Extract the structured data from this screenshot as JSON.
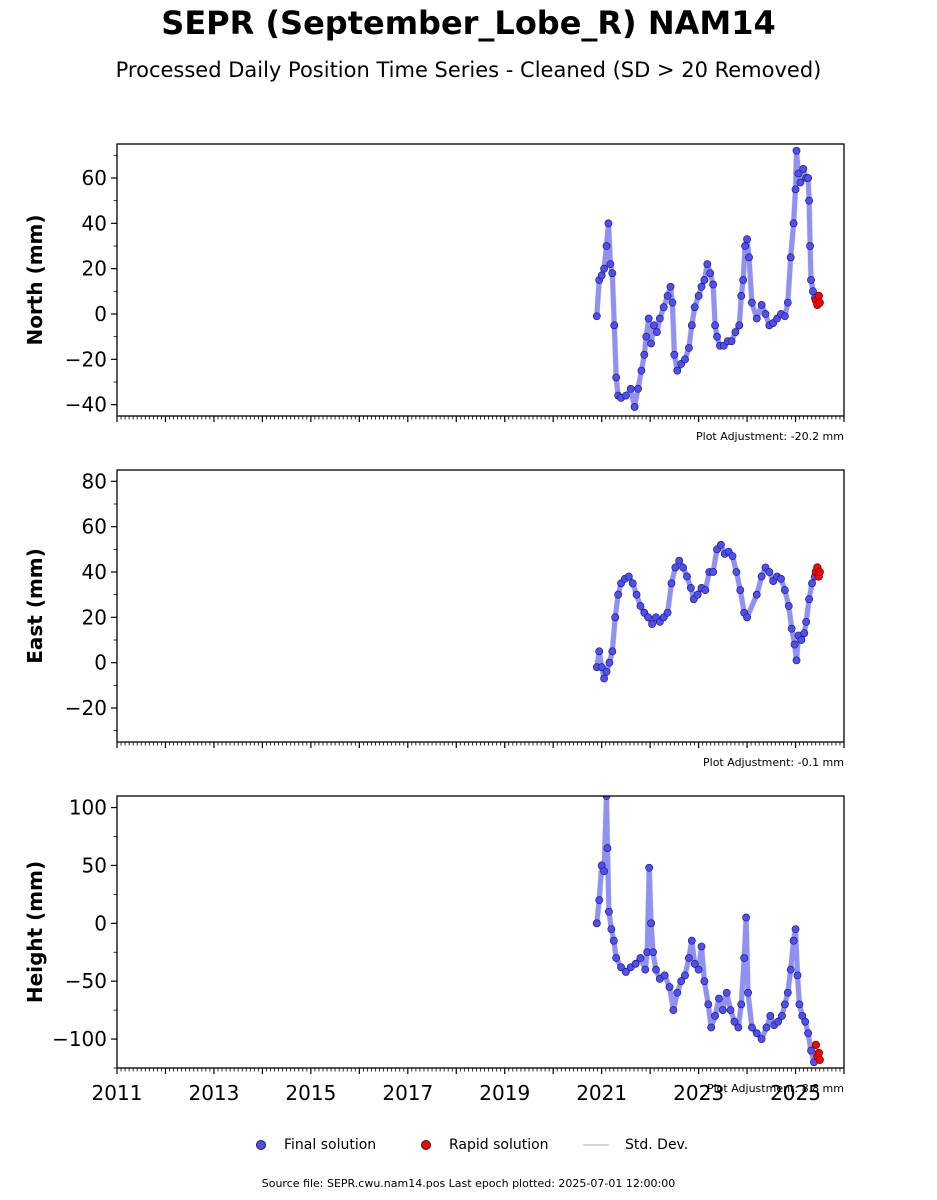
{
  "title": "SEPR (September_Lobe_R) NAM14",
  "subtitle": "Processed Daily Position Time Series - Cleaned (SD > 20 Removed)",
  "legend": {
    "final": "Final solution",
    "rapid": "Rapid solution",
    "std": "Std. Dev."
  },
  "footer": "Source file: SEPR.cwu.nam14.pos  Last epoch plotted: 2025-07-01 12:00:00",
  "colors": {
    "final": "#4d4dff",
    "rapid": "#ff0000",
    "std": "#cccccc",
    "edge": "#1a1a3a"
  },
  "chart_data": [
    {
      "type": "scatter",
      "ylabel": "North (mm)",
      "adjustment": "Plot Adjustment: -20.2 mm",
      "xlim": [
        2011,
        2026
      ],
      "ylim": [
        -45,
        75
      ],
      "yticks": [
        -40,
        -20,
        0,
        20,
        40,
        60
      ],
      "yticklabels": [
        "−40",
        "−20",
        "0",
        "20",
        "40",
        "60"
      ],
      "final": [
        [
          2020.9,
          -1
        ],
        [
          2020.95,
          15
        ],
        [
          2021.0,
          17
        ],
        [
          2021.05,
          20
        ],
        [
          2021.1,
          30
        ],
        [
          2021.14,
          40
        ],
        [
          2021.18,
          22
        ],
        [
          2021.22,
          18
        ],
        [
          2021.26,
          -5
        ],
        [
          2021.3,
          -28
        ],
        [
          2021.34,
          -36
        ],
        [
          2021.4,
          -37
        ],
        [
          2021.5,
          -36
        ],
        [
          2021.6,
          -33
        ],
        [
          2021.68,
          -41
        ],
        [
          2021.75,
          -33
        ],
        [
          2021.82,
          -25
        ],
        [
          2021.88,
          -18
        ],
        [
          2021.92,
          -10
        ],
        [
          2021.97,
          -2
        ],
        [
          2022.02,
          -13
        ],
        [
          2022.08,
          -5
        ],
        [
          2022.14,
          -8
        ],
        [
          2022.2,
          -2
        ],
        [
          2022.28,
          3
        ],
        [
          2022.36,
          8
        ],
        [
          2022.42,
          12
        ],
        [
          2022.46,
          5
        ],
        [
          2022.5,
          -18
        ],
        [
          2022.56,
          -25
        ],
        [
          2022.64,
          -22
        ],
        [
          2022.72,
          -20
        ],
        [
          2022.8,
          -15
        ],
        [
          2022.86,
          -5
        ],
        [
          2022.92,
          3
        ],
        [
          2023.0,
          8
        ],
        [
          2023.06,
          12
        ],
        [
          2023.12,
          15
        ],
        [
          2023.18,
          22
        ],
        [
          2023.24,
          18
        ],
        [
          2023.3,
          13
        ],
        [
          2023.34,
          -5
        ],
        [
          2023.38,
          -10
        ],
        [
          2023.44,
          -14
        ],
        [
          2023.52,
          -14
        ],
        [
          2023.6,
          -12
        ],
        [
          2023.68,
          -12
        ],
        [
          2023.76,
          -8
        ],
        [
          2023.84,
          -5
        ],
        [
          2023.88,
          8
        ],
        [
          2023.92,
          15
        ],
        [
          2023.96,
          30
        ],
        [
          2024.0,
          33
        ],
        [
          2024.04,
          25
        ],
        [
          2024.1,
          5
        ],
        [
          2024.2,
          -2
        ],
        [
          2024.3,
          4
        ],
        [
          2024.38,
          0
        ],
        [
          2024.46,
          -5
        ],
        [
          2024.54,
          -4
        ],
        [
          2024.62,
          -2
        ],
        [
          2024.7,
          0
        ],
        [
          2024.78,
          -1
        ],
        [
          2024.84,
          5
        ],
        [
          2024.9,
          25
        ],
        [
          2024.96,
          40
        ],
        [
          2025.0,
          55
        ],
        [
          2025.02,
          72
        ],
        [
          2025.06,
          62
        ],
        [
          2025.1,
          58
        ],
        [
          2025.16,
          64
        ],
        [
          2025.22,
          60
        ],
        [
          2025.26,
          60
        ],
        [
          2025.28,
          50
        ],
        [
          2025.3,
          30
        ],
        [
          2025.32,
          15
        ],
        [
          2025.36,
          10
        ],
        [
          2025.4,
          7
        ]
      ],
      "rapid": [
        [
          2025.42,
          6
        ],
        [
          2025.45,
          4
        ],
        [
          2025.48,
          8
        ],
        [
          2025.5,
          5
        ]
      ]
    },
    {
      "type": "scatter",
      "ylabel": "East (mm)",
      "adjustment": "Plot Adjustment: -0.1 mm",
      "xlim": [
        2011,
        2026
      ],
      "ylim": [
        -35,
        85
      ],
      "yticks": [
        -20,
        0,
        20,
        40,
        60,
        80
      ],
      "yticklabels": [
        "−20",
        "0",
        "20",
        "40",
        "60",
        "80"
      ],
      "final": [
        [
          2020.9,
          -2
        ],
        [
          2020.95,
          5
        ],
        [
          2021.0,
          -2
        ],
        [
          2021.05,
          -7
        ],
        [
          2021.1,
          -4
        ],
        [
          2021.16,
          0
        ],
        [
          2021.22,
          5
        ],
        [
          2021.28,
          20
        ],
        [
          2021.34,
          30
        ],
        [
          2021.4,
          35
        ],
        [
          2021.48,
          37
        ],
        [
          2021.56,
          38
        ],
        [
          2021.64,
          35
        ],
        [
          2021.72,
          30
        ],
        [
          2021.8,
          25
        ],
        [
          2021.88,
          22
        ],
        [
          2021.96,
          20
        ],
        [
          2022.04,
          17
        ],
        [
          2022.12,
          20
        ],
        [
          2022.2,
          18
        ],
        [
          2022.28,
          20
        ],
        [
          2022.36,
          22
        ],
        [
          2022.44,
          35
        ],
        [
          2022.52,
          42
        ],
        [
          2022.6,
          45
        ],
        [
          2022.68,
          42
        ],
        [
          2022.76,
          38
        ],
        [
          2022.84,
          33
        ],
        [
          2022.9,
          28
        ],
        [
          2022.98,
          30
        ],
        [
          2023.06,
          33
        ],
        [
          2023.14,
          32
        ],
        [
          2023.22,
          40
        ],
        [
          2023.3,
          40
        ],
        [
          2023.38,
          50
        ],
        [
          2023.46,
          52
        ],
        [
          2023.54,
          48
        ],
        [
          2023.62,
          49
        ],
        [
          2023.7,
          47
        ],
        [
          2023.78,
          40
        ],
        [
          2023.86,
          32
        ],
        [
          2023.94,
          22
        ],
        [
          2024.0,
          20
        ],
        [
          2024.2,
          30
        ],
        [
          2024.3,
          38
        ],
        [
          2024.38,
          42
        ],
        [
          2024.46,
          40
        ],
        [
          2024.54,
          36
        ],
        [
          2024.62,
          38
        ],
        [
          2024.7,
          37
        ],
        [
          2024.78,
          32
        ],
        [
          2024.86,
          25
        ],
        [
          2024.92,
          15
        ],
        [
          2024.98,
          8
        ],
        [
          2025.02,
          1
        ],
        [
          2025.06,
          12
        ],
        [
          2025.12,
          10
        ],
        [
          2025.18,
          13
        ],
        [
          2025.22,
          18
        ],
        [
          2025.28,
          28
        ],
        [
          2025.34,
          35
        ],
        [
          2025.4,
          38
        ]
      ],
      "rapid": [
        [
          2025.42,
          40
        ],
        [
          2025.45,
          42
        ],
        [
          2025.48,
          38
        ],
        [
          2025.5,
          40
        ]
      ]
    },
    {
      "type": "scatter",
      "ylabel": "Height (mm)",
      "adjustment": "Plot Adjustment: 8.8 mm",
      "xlim": [
        2011,
        2026
      ],
      "ylim": [
        -125,
        110
      ],
      "xticks": [
        2011,
        2013,
        2015,
        2017,
        2019,
        2021,
        2023,
        2025
      ],
      "xticklabels": [
        "2011",
        "2013",
        "2015",
        "2017",
        "2019",
        "2021",
        "2023",
        "2025"
      ],
      "yticks": [
        -100,
        -50,
        0,
        50,
        100
      ],
      "yticklabels": [
        "−100",
        "−50",
        "0",
        "50",
        "100"
      ],
      "final": [
        [
          2020.9,
          0
        ],
        [
          2020.95,
          20
        ],
        [
          2021.0,
          50
        ],
        [
          2021.05,
          45
        ],
        [
          2021.1,
          110
        ],
        [
          2021.12,
          65
        ],
        [
          2021.15,
          10
        ],
        [
          2021.2,
          -5
        ],
        [
          2021.25,
          -15
        ],
        [
          2021.3,
          -30
        ],
        [
          2021.4,
          -38
        ],
        [
          2021.5,
          -42
        ],
        [
          2021.6,
          -38
        ],
        [
          2021.7,
          -35
        ],
        [
          2021.8,
          -30
        ],
        [
          2021.9,
          -40
        ],
        [
          2021.94,
          -25
        ],
        [
          2021.98,
          48
        ],
        [
          2022.02,
          0
        ],
        [
          2022.06,
          -25
        ],
        [
          2022.12,
          -40
        ],
        [
          2022.2,
          -48
        ],
        [
          2022.3,
          -45
        ],
        [
          2022.4,
          -55
        ],
        [
          2022.48,
          -75
        ],
        [
          2022.56,
          -60
        ],
        [
          2022.64,
          -50
        ],
        [
          2022.72,
          -45
        ],
        [
          2022.8,
          -30
        ],
        [
          2022.86,
          -15
        ],
        [
          2022.92,
          -35
        ],
        [
          2023.0,
          -40
        ],
        [
          2023.06,
          -20
        ],
        [
          2023.12,
          -50
        ],
        [
          2023.2,
          -70
        ],
        [
          2023.26,
          -90
        ],
        [
          2023.34,
          -80
        ],
        [
          2023.42,
          -65
        ],
        [
          2023.5,
          -75
        ],
        [
          2023.58,
          -60
        ],
        [
          2023.66,
          -75
        ],
        [
          2023.74,
          -85
        ],
        [
          2023.82,
          -90
        ],
        [
          2023.88,
          -70
        ],
        [
          2023.94,
          -30
        ],
        [
          2023.98,
          5
        ],
        [
          2024.02,
          -60
        ],
        [
          2024.1,
          -90
        ],
        [
          2024.2,
          -95
        ],
        [
          2024.3,
          -100
        ],
        [
          2024.4,
          -90
        ],
        [
          2024.48,
          -80
        ],
        [
          2024.56,
          -88
        ],
        [
          2024.64,
          -85
        ],
        [
          2024.72,
          -80
        ],
        [
          2024.78,
          -70
        ],
        [
          2024.84,
          -60
        ],
        [
          2024.9,
          -40
        ],
        [
          2024.96,
          -15
        ],
        [
          2025.0,
          -5
        ],
        [
          2025.04,
          -45
        ],
        [
          2025.08,
          -70
        ],
        [
          2025.14,
          -80
        ],
        [
          2025.2,
          -85
        ],
        [
          2025.26,
          -95
        ],
        [
          2025.32,
          -110
        ],
        [
          2025.38,
          -120
        ]
      ],
      "rapid": [
        [
          2025.42,
          -105
        ],
        [
          2025.45,
          -115
        ],
        [
          2025.48,
          -112
        ],
        [
          2025.5,
          -118
        ]
      ]
    }
  ]
}
